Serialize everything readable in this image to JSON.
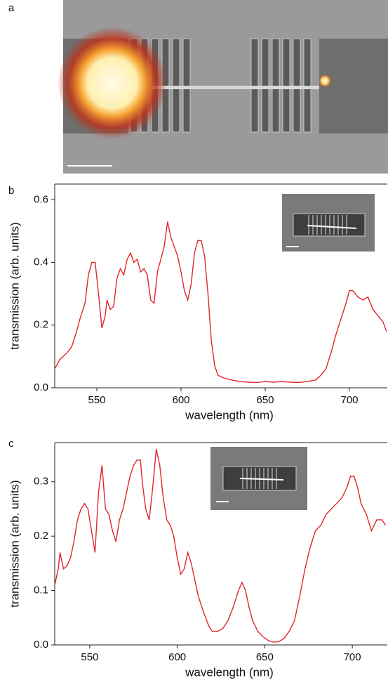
{
  "labels": [
    "a",
    "b",
    "c"
  ],
  "chart_data": [
    {
      "type": "line",
      "xlabel": "wavelength (nm)",
      "ylabel": "transmission (arb. units)",
      "color": "#e0262b",
      "xlim": [
        525,
        722.5
      ],
      "ylim": [
        0,
        0.65
      ],
      "xticks": [
        550,
        600,
        650,
        700
      ],
      "yticks": [
        {
          "value": 0,
          "label": "0.0"
        },
        0.2,
        0.4,
        0.6
      ],
      "x": [
        525,
        528,
        532,
        535,
        538,
        540,
        543,
        545,
        547,
        549,
        551,
        553,
        555,
        556,
        558,
        560,
        562,
        564,
        566,
        568,
        570,
        572,
        574,
        576,
        578,
        580,
        582,
        584,
        586,
        588,
        590,
        592,
        594,
        596,
        598,
        600,
        602,
        604,
        606,
        608,
        610,
        612,
        614,
        616,
        618,
        620,
        622,
        626,
        630,
        635,
        640,
        645,
        650,
        655,
        660,
        665,
        670,
        675,
        680,
        683,
        686,
        689,
        692,
        695,
        698,
        700,
        702,
        705,
        708,
        711,
        714,
        717,
        720,
        722
      ],
      "values": [
        0.06,
        0.09,
        0.11,
        0.13,
        0.18,
        0.22,
        0.27,
        0.36,
        0.4,
        0.4,
        0.3,
        0.19,
        0.23,
        0.28,
        0.25,
        0.26,
        0.35,
        0.38,
        0.36,
        0.41,
        0.43,
        0.4,
        0.41,
        0.37,
        0.38,
        0.36,
        0.28,
        0.27,
        0.37,
        0.41,
        0.45,
        0.53,
        0.48,
        0.45,
        0.42,
        0.37,
        0.31,
        0.28,
        0.33,
        0.43,
        0.47,
        0.47,
        0.42,
        0.3,
        0.15,
        0.07,
        0.04,
        0.03,
        0.025,
        0.02,
        0.018,
        0.017,
        0.02,
        0.018,
        0.02,
        0.018,
        0.017,
        0.02,
        0.025,
        0.04,
        0.06,
        0.11,
        0.17,
        0.22,
        0.27,
        0.31,
        0.31,
        0.29,
        0.28,
        0.29,
        0.25,
        0.23,
        0.21,
        0.18
      ]
    },
    {
      "type": "line",
      "xlabel": "wavelength (nm)",
      "ylabel": "transmission (arb. units)",
      "color": "#e0262b",
      "xlim": [
        530,
        720
      ],
      "ylim": [
        0,
        0.372
      ],
      "xticks": [
        550,
        600,
        650,
        700
      ],
      "yticks": [
        {
          "value": 0,
          "label": "0.0"
        },
        0.1,
        0.2,
        0.3
      ],
      "x": [
        530,
        532,
        533,
        535,
        537,
        539,
        541,
        543,
        545,
        547,
        549,
        551,
        553,
        555,
        557,
        559,
        561,
        563,
        565,
        567,
        569,
        571,
        573,
        575,
        577,
        579,
        580,
        582,
        584,
        586,
        588,
        590,
        592,
        594,
        596,
        598,
        600,
        602,
        604,
        606,
        608,
        610,
        612,
        615,
        618,
        620,
        623,
        626,
        629,
        632,
        635,
        637,
        639,
        641,
        643,
        646,
        649,
        652,
        655,
        658,
        661,
        664,
        667,
        670,
        673,
        676,
        679,
        682,
        685,
        688,
        691,
        694,
        697,
        699,
        701,
        703,
        705,
        708,
        711,
        714,
        717,
        719
      ],
      "values": [
        0.11,
        0.14,
        0.17,
        0.14,
        0.145,
        0.16,
        0.19,
        0.23,
        0.25,
        0.26,
        0.25,
        0.21,
        0.17,
        0.28,
        0.33,
        0.25,
        0.24,
        0.21,
        0.19,
        0.23,
        0.25,
        0.28,
        0.31,
        0.33,
        0.34,
        0.34,
        0.3,
        0.25,
        0.23,
        0.29,
        0.36,
        0.33,
        0.27,
        0.23,
        0.22,
        0.2,
        0.16,
        0.13,
        0.14,
        0.17,
        0.15,
        0.12,
        0.09,
        0.06,
        0.035,
        0.025,
        0.025,
        0.03,
        0.045,
        0.07,
        0.1,
        0.115,
        0.1,
        0.07,
        0.045,
        0.025,
        0.015,
        0.008,
        0.005,
        0.006,
        0.012,
        0.025,
        0.045,
        0.09,
        0.14,
        0.18,
        0.21,
        0.22,
        0.24,
        0.25,
        0.26,
        0.27,
        0.29,
        0.31,
        0.31,
        0.29,
        0.26,
        0.24,
        0.21,
        0.23,
        0.23,
        0.22
      ]
    }
  ]
}
